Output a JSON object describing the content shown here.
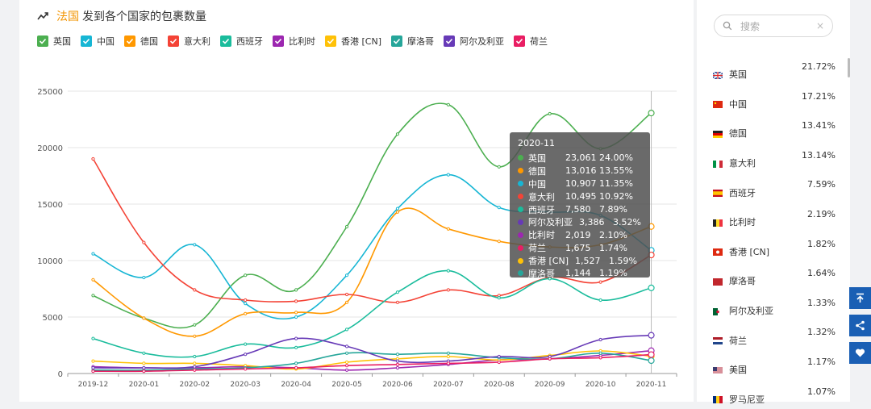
{
  "header": {
    "accent": "法国",
    "title": "发到各个国家的包裹数量"
  },
  "search": {
    "placeholder": "搜索",
    "clear": "×"
  },
  "side_buttons": [
    {
      "icon": "arrow-up-top-icon"
    },
    {
      "icon": "share-icon"
    },
    {
      "icon": "heart-icon"
    }
  ],
  "country_list": [
    {
      "name": "英国",
      "pct": "21.72%",
      "flag": "gb"
    },
    {
      "name": "中国",
      "pct": "17.21%",
      "flag": "cn"
    },
    {
      "name": "德国",
      "pct": "13.41%",
      "flag": "de"
    },
    {
      "name": "意大利",
      "pct": "13.14%",
      "flag": "it"
    },
    {
      "name": "西班牙",
      "pct": "7.59%",
      "flag": "es"
    },
    {
      "name": "比利时",
      "pct": "2.19%",
      "flag": "be"
    },
    {
      "name": "香港 [CN]",
      "pct": "1.82%",
      "flag": "hk"
    },
    {
      "name": "摩洛哥",
      "pct": "1.64%",
      "flag": "ma"
    },
    {
      "name": "阿尔及利亚",
      "pct": "1.33%",
      "flag": "dz"
    },
    {
      "name": "荷兰",
      "pct": "1.32%",
      "flag": "nl"
    },
    {
      "name": "美国",
      "pct": "1.17%",
      "flag": "us"
    },
    {
      "name": "罗马尼亚",
      "pct": "1.07%",
      "flag": "ro"
    }
  ],
  "tooltip": {
    "title": "2020-11",
    "rows": [
      {
        "name": "英国",
        "value": "23,061",
        "pct": "24.00%",
        "color": "#4caf50"
      },
      {
        "name": "德国",
        "value": "13,016",
        "pct": "13.55%",
        "color": "#ff9800"
      },
      {
        "name": "中国",
        "value": "10,907",
        "pct": "11.35%",
        "color": "#17b6d4"
      },
      {
        "name": "意大利",
        "value": "10,495",
        "pct": "10.92%",
        "color": "#f44336"
      },
      {
        "name": "西班牙",
        "value": "7,580",
        "pct": "7.89%",
        "color": "#1abc9c"
      },
      {
        "name": "阿尔及利亚",
        "value": "3,386",
        "pct": "3.52%",
        "color": "#673ab7"
      },
      {
        "name": "比利时",
        "value": "2,019",
        "pct": "2.10%",
        "color": "#9c27b0"
      },
      {
        "name": "荷兰",
        "value": "1,675",
        "pct": "1.74%",
        "color": "#e91e63"
      },
      {
        "name": "香港 [CN]",
        "value": "1,527",
        "pct": "1.59%",
        "color": "#ffc107"
      },
      {
        "name": "摩洛哥",
        "value": "1,144",
        "pct": "1.19%",
        "color": "#26a69a"
      }
    ]
  },
  "chart_data": {
    "type": "line",
    "title": "发到各个国家的包裹数量",
    "xlabel": "",
    "ylabel": "",
    "ylim": [
      0,
      25000
    ],
    "yticks": [
      "0",
      "5000",
      "10000",
      "15000",
      "20000",
      "25000"
    ],
    "categories": [
      "2019-12",
      "2020-01",
      "2020-02",
      "2020-03",
      "2020-04",
      "2020-05",
      "2020-06",
      "2020-07",
      "2020-08",
      "2020-09",
      "2020-10",
      "2020-11"
    ],
    "series": [
      {
        "name": "英国",
        "color": "#4caf50",
        "values": [
          6900,
          4900,
          4300,
          8700,
          7400,
          13000,
          21200,
          23800,
          18300,
          23000,
          19900,
          23061
        ]
      },
      {
        "name": "中国",
        "color": "#17b6d4",
        "values": [
          10600,
          8500,
          11400,
          6200,
          5000,
          8700,
          14600,
          17600,
          14700,
          14300,
          14000,
          10907
        ]
      },
      {
        "name": "德国",
        "color": "#ff9800",
        "values": [
          8300,
          4900,
          3300,
          5300,
          5400,
          6300,
          14300,
          12800,
          11700,
          11200,
          11400,
          13016
        ]
      },
      {
        "name": "意大利",
        "color": "#f44336",
        "values": [
          19000,
          11600,
          7400,
          6500,
          6400,
          7000,
          6300,
          7400,
          6900,
          8500,
          8100,
          10495
        ]
      },
      {
        "name": "西班牙",
        "color": "#1abc9c",
        "values": [
          3100,
          1800,
          1500,
          2600,
          2300,
          3900,
          7200,
          9100,
          6700,
          8400,
          6500,
          7580
        ]
      },
      {
        "name": "比利时",
        "color": "#9c27b0",
        "values": [
          600,
          500,
          500,
          600,
          500,
          300,
          500,
          800,
          1200,
          1300,
          1600,
          2019
        ]
      },
      {
        "name": "香港 [CN]",
        "color": "#ffc107",
        "values": [
          1100,
          900,
          900,
          700,
          400,
          1000,
          1300,
          1500,
          1200,
          1600,
          2000,
          1527
        ]
      },
      {
        "name": "摩洛哥",
        "color": "#26a69a",
        "values": [
          300,
          300,
          400,
          500,
          900,
          1800,
          1700,
          1800,
          1400,
          1300,
          1800,
          1144
        ]
      },
      {
        "name": "阿尔及利亚",
        "color": "#673ab7",
        "values": [
          500,
          500,
          600,
          1700,
          3100,
          2400,
          1100,
          1100,
          1500,
          1500,
          3000,
          3386
        ]
      },
      {
        "name": "荷兰",
        "color": "#e91e63",
        "values": [
          200,
          200,
          300,
          400,
          500,
          700,
          800,
          900,
          1000,
          1300,
          1400,
          1675
        ]
      }
    ]
  }
}
